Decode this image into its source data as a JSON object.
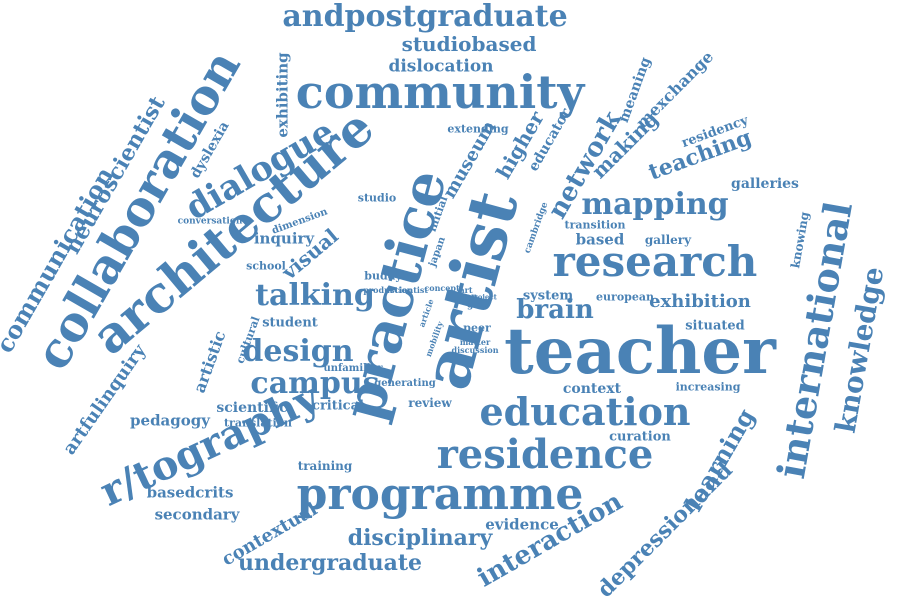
{
  "word_color": "#4a82b5",
  "background": "#ffffff",
  "words": [
    "andpostgraduate",
    "studiobased",
    "dislocation",
    "community",
    "collaboration",
    "exhibiting",
    "neuroscientist",
    "communication",
    "dyslexia",
    "architecture",
    "dialogue",
    "practice",
    "artist",
    "teacher",
    "research",
    "mapping",
    "network",
    "teaching",
    "meaning",
    "mexchange",
    "residency",
    "making",
    "higher",
    "museum",
    "educator",
    "extending",
    "international",
    "knowledge",
    "galleries",
    "knowing",
    "programme",
    "residence",
    "education",
    "r/tography",
    "campus",
    "design",
    "talking",
    "brain",
    "exhibition",
    "situated",
    "learning",
    "depressionand",
    "interaction",
    "disciplinary",
    "undergraduate",
    "contextual",
    "secondary",
    "basedcrits",
    "pedagogy",
    "artfulinquiry",
    "artistic",
    "cultural",
    "scientific",
    "translation",
    "training",
    "critical",
    "review",
    "unfamiliar",
    "student",
    "visual",
    "inquiry",
    "dimension",
    "conversation",
    "school",
    "studio",
    "buddy",
    "initial",
    "japan",
    "cambridge",
    "transition",
    "gallery",
    "based",
    "system",
    "european",
    "context",
    "curation",
    "increasing",
    "evidence",
    "generating",
    "peer",
    "matter",
    "discussion",
    "mobility",
    "article",
    "production",
    "concept",
    "scientist",
    "art",
    "tran",
    "grey",
    "project"
  ]
}
